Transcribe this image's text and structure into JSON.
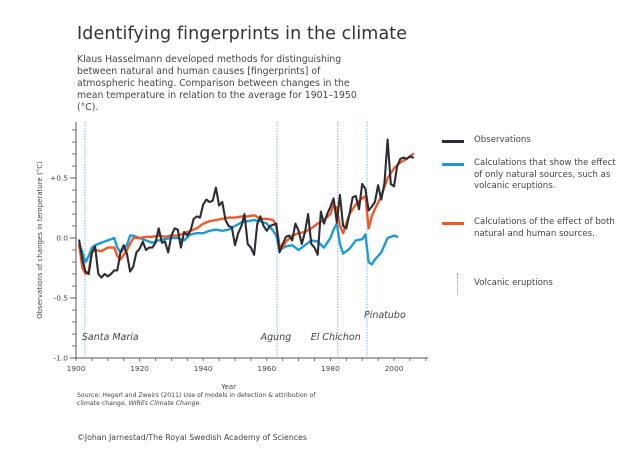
{
  "header": {
    "title": "Identifying fingerprints in the climate",
    "subtitle": "Klaus Hasselmann developed methods for distinguishing between natural and human causes [fingerprints] of atmospheric heating. Comparison between changes in the mean temperature in relation to the average for 1901–1950 (°C)."
  },
  "colors": {
    "observations": "#2b2d33",
    "natural": "#1e9bd7",
    "natural_human": "#f05a28",
    "volcanic": "#6fa6c8",
    "axis": "#555555"
  },
  "legend": {
    "items": [
      {
        "key": "observations",
        "label": "Observations"
      },
      {
        "key": "natural",
        "label": "Calculations that show the effect of only natural sources, such as volcanic eruptions."
      },
      {
        "key": "natural_human",
        "label": "Calculations of the effect of both natural and human sources."
      },
      {
        "key": "volcanic",
        "label": "Volcanic eruptions"
      }
    ]
  },
  "footer": {
    "source_prefix": "Source: Hegerl and Zweirs (2011) Use of models in detection & attribution of climate change, ",
    "source_italic": "WIREs Climate Change.",
    "credit": "©Johan Jarnestad/The Royal Swedish Academy of Sciences"
  },
  "chart_data": {
    "type": "line",
    "title": "Identifying fingerprints in the climate",
    "xlabel": "Year",
    "ylabel": "Observations of changes in temperature (°C)",
    "xlim": [
      1900,
      2012
    ],
    "ylim": [
      -1.0,
      1.0
    ],
    "x_ticks": [
      1900,
      1920,
      1940,
      1960,
      1980,
      2000
    ],
    "x_tick_labels": [
      "1900",
      "1920",
      "1940",
      "1960",
      "1980",
      "2000"
    ],
    "y_ticks": [
      0.5,
      0.0,
      -0.5,
      -1.0
    ],
    "y_tick_labels": [
      "+0.5",
      "0.0",
      "-0.5",
      "-1.0"
    ],
    "grid": false,
    "legend_position": "right",
    "volcanic_eruptions": [
      {
        "name": "Santa Maria",
        "year": 1902.8
      },
      {
        "name": "Agung",
        "year": 1963.2
      },
      {
        "name": "El Chichon",
        "year": 1982.3
      },
      {
        "name": "Pinatubo",
        "year": 1991.5
      }
    ],
    "series": [
      {
        "name": "Observations",
        "key": "observations",
        "x": [
          1901,
          1902,
          1903,
          1904,
          1905,
          1906,
          1907,
          1908,
          1909,
          1910,
          1911,
          1912,
          1913,
          1914,
          1915,
          1916,
          1917,
          1918,
          1919,
          1920,
          1921,
          1922,
          1923,
          1924,
          1925,
          1926,
          1927,
          1928,
          1929,
          1930,
          1931,
          1932,
          1933,
          1934,
          1935,
          1936,
          1937,
          1938,
          1939,
          1940,
          1941,
          1942,
          1943,
          1944,
          1945,
          1946,
          1947,
          1948,
          1949,
          1950,
          1951,
          1952,
          1953,
          1954,
          1955,
          1956,
          1957,
          1958,
          1959,
          1960,
          1961,
          1962,
          1963,
          1964,
          1965,
          1966,
          1967,
          1968,
          1969,
          1970,
          1971,
          1972,
          1973,
          1974,
          1975,
          1976,
          1977,
          1978,
          1979,
          1980,
          1981,
          1982,
          1983,
          1984,
          1985,
          1986,
          1987,
          1988,
          1989,
          1990,
          1991,
          1992,
          1993,
          1994,
          1995,
          1996,
          1997,
          1998,
          1999,
          2000,
          2001,
          2002,
          2003,
          2004,
          2005,
          2006
        ],
        "values": [
          -0.02,
          -0.18,
          -0.28,
          -0.3,
          -0.12,
          -0.07,
          -0.3,
          -0.33,
          -0.3,
          -0.32,
          -0.3,
          -0.27,
          -0.27,
          -0.12,
          -0.06,
          -0.13,
          -0.28,
          -0.24,
          -0.12,
          -0.09,
          -0.03,
          -0.1,
          -0.08,
          -0.08,
          -0.04,
          0.08,
          -0.04,
          -0.03,
          -0.12,
          0.02,
          0.08,
          0.07,
          -0.08,
          0.05,
          0.02,
          0.06,
          0.16,
          0.18,
          0.17,
          0.28,
          0.32,
          0.3,
          0.31,
          0.42,
          0.27,
          0.3,
          0.15,
          0.1,
          0.09,
          -0.06,
          0.04,
          0.1,
          0.2,
          -0.05,
          -0.08,
          -0.14,
          0.12,
          0.18,
          0.1,
          0.06,
          0.1,
          0.11,
          0.12,
          -0.12,
          -0.05,
          0.01,
          0.02,
          -0.02,
          0.12,
          0.06,
          -0.05,
          0.05,
          0.2,
          -0.05,
          -0.08,
          -0.14,
          0.22,
          0.12,
          0.2,
          0.26,
          0.33,
          0.13,
          0.36,
          0.1,
          0.08,
          0.2,
          0.34,
          0.35,
          0.24,
          0.45,
          0.41,
          0.23,
          0.26,
          0.3,
          0.44,
          0.32,
          0.46,
          0.82,
          0.45,
          0.43,
          0.6,
          0.66,
          0.67,
          0.66,
          0.68,
          0.67
        ]
      },
      {
        "name": "Calculations that show the effect of only natural sources",
        "key": "natural",
        "x": [
          1901,
          1902,
          1903,
          1904,
          1905,
          1906,
          1908,
          1910,
          1912,
          1913,
          1914,
          1916,
          1917,
          1918,
          1920,
          1922,
          1924,
          1926,
          1928,
          1930,
          1932,
          1934,
          1936,
          1938,
          1940,
          1942,
          1944,
          1946,
          1948,
          1950,
          1952,
          1954,
          1956,
          1958,
          1960,
          1962,
          1963,
          1964,
          1966,
          1968,
          1970,
          1972,
          1974,
          1976,
          1978,
          1980,
          1981,
          1982,
          1983,
          1984,
          1986,
          1988,
          1990,
          1991,
          1992,
          1993,
          1994,
          1996,
          1998,
          2000,
          2001
        ],
        "values": [
          -0.05,
          -0.12,
          -0.2,
          -0.15,
          -0.08,
          -0.06,
          -0.04,
          -0.02,
          0.0,
          -0.08,
          -0.12,
          -0.06,
          0.02,
          0.02,
          0.0,
          -0.02,
          -0.04,
          -0.02,
          -0.01,
          0.0,
          0.0,
          -0.02,
          0.03,
          0.04,
          0.04,
          0.06,
          0.07,
          0.06,
          0.07,
          0.1,
          0.13,
          0.14,
          0.15,
          0.14,
          0.12,
          0.06,
          0.02,
          -0.1,
          -0.07,
          -0.06,
          -0.1,
          -0.06,
          -0.02,
          -0.03,
          -0.08,
          0.0,
          0.07,
          0.12,
          -0.05,
          -0.13,
          -0.09,
          -0.02,
          -0.01,
          0.03,
          -0.2,
          -0.22,
          -0.18,
          -0.12,
          0.0,
          0.02,
          0.01
        ]
      },
      {
        "name": "Calculations of the effect of both natural and human sources",
        "key": "natural_human",
        "x": [
          1901,
          1902,
          1903,
          1904,
          1905,
          1906,
          1908,
          1910,
          1912,
          1913,
          1914,
          1916,
          1918,
          1920,
          1922,
          1924,
          1926,
          1928,
          1930,
          1932,
          1934,
          1936,
          1938,
          1940,
          1942,
          1944,
          1946,
          1948,
          1950,
          1952,
          1954,
          1956,
          1958,
          1960,
          1962,
          1963,
          1964,
          1965,
          1966,
          1968,
          1970,
          1972,
          1974,
          1976,
          1978,
          1980,
          1981,
          1982,
          1983,
          1984,
          1986,
          1988,
          1990,
          1991,
          1992,
          1993,
          1994,
          1996,
          1998,
          2000,
          2002,
          2004,
          2006
        ],
        "values": [
          -0.06,
          -0.25,
          -0.3,
          -0.28,
          -0.12,
          -0.1,
          -0.11,
          -0.08,
          -0.08,
          -0.15,
          -0.18,
          -0.1,
          0.0,
          0.0,
          0.01,
          0.01,
          0.02,
          0.01,
          0.02,
          0.02,
          0.04,
          0.06,
          0.08,
          0.12,
          0.14,
          0.15,
          0.16,
          0.17,
          0.17,
          0.18,
          0.18,
          0.19,
          0.16,
          0.16,
          0.15,
          0.1,
          -0.06,
          -0.08,
          -0.03,
          0.02,
          0.04,
          0.05,
          0.08,
          0.12,
          0.15,
          0.2,
          0.28,
          0.25,
          0.1,
          0.04,
          0.2,
          0.28,
          0.33,
          0.35,
          0.08,
          0.18,
          0.24,
          0.35,
          0.5,
          0.58,
          0.63,
          0.66,
          0.7
        ]
      }
    ]
  }
}
